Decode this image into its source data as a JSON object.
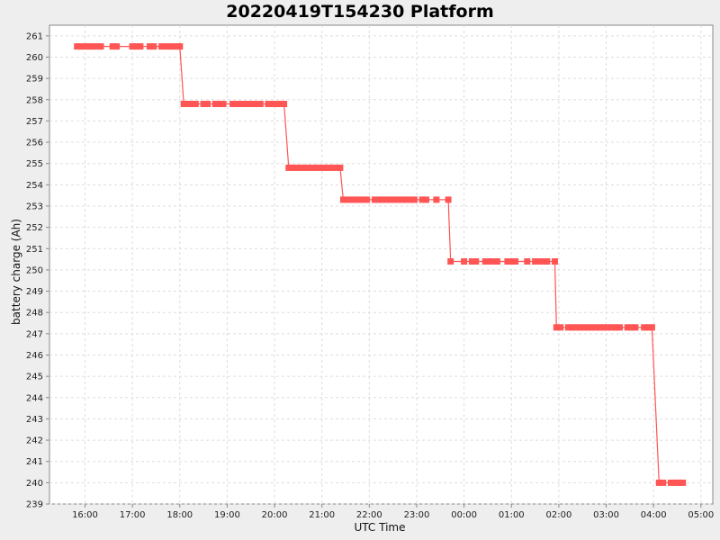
{
  "chart_data": {
    "type": "line",
    "title": "20220419T154230 Platform",
    "xlabel": "UTC Time",
    "ylabel": "battery charge (Ah)",
    "x_tick_labels": [
      "16:00",
      "17:00",
      "18:00",
      "19:00",
      "20:00",
      "21:00",
      "22:00",
      "23:00",
      "00:00",
      "01:00",
      "02:00",
      "03:00",
      "04:00",
      "05:00"
    ],
    "y_tick_labels": [
      "239",
      "240",
      "241",
      "242",
      "243",
      "244",
      "245",
      "246",
      "247",
      "248",
      "249",
      "250",
      "251",
      "252",
      "253",
      "254",
      "255",
      "256",
      "257",
      "258",
      "259",
      "260",
      "261"
    ],
    "xlim": [
      "2022-04-19 15:15",
      "2022-04-20 05:15"
    ],
    "ylim": [
      239,
      261.5
    ],
    "grid": true,
    "legend": "none",
    "series": [
      {
        "color": "#ff5555",
        "line_style": "solid-with-square-markers",
        "points": [
          {
            "x": "2022-04-19 15:50",
            "y": 260.5
          },
          {
            "x": "2022-04-19 15:55",
            "y": 260.5
          },
          {
            "x": "2022-04-19 16:00",
            "y": 260.5
          },
          {
            "x": "2022-04-19 16:05",
            "y": 260.5
          },
          {
            "x": "2022-04-19 16:10",
            "y": 260.5
          },
          {
            "x": "2022-04-19 16:15",
            "y": 260.5
          },
          {
            "x": "2022-04-19 16:20",
            "y": 260.5
          },
          {
            "x": "2022-04-19 16:35",
            "y": 260.5
          },
          {
            "x": "2022-04-19 16:40",
            "y": 260.5
          },
          {
            "x": "2022-04-19 17:00",
            "y": 260.5
          },
          {
            "x": "2022-04-19 17:05",
            "y": 260.5
          },
          {
            "x": "2022-04-19 17:10",
            "y": 260.5
          },
          {
            "x": "2022-04-19 17:22",
            "y": 260.5
          },
          {
            "x": "2022-04-19 17:27",
            "y": 260.5
          },
          {
            "x": "2022-04-19 17:37",
            "y": 260.5
          },
          {
            "x": "2022-04-19 17:42",
            "y": 260.5
          },
          {
            "x": "2022-04-19 17:47",
            "y": 260.5
          },
          {
            "x": "2022-04-19 17:52",
            "y": 260.5
          },
          {
            "x": "2022-04-19 17:57",
            "y": 260.5
          },
          {
            "x": "2022-04-19 18:00",
            "y": 260.5
          },
          {
            "x": "2022-04-19 18:05",
            "y": 257.8
          },
          {
            "x": "2022-04-19 18:10",
            "y": 257.8
          },
          {
            "x": "2022-04-19 18:15",
            "y": 257.8
          },
          {
            "x": "2022-04-19 18:20",
            "y": 257.8
          },
          {
            "x": "2022-04-19 18:30",
            "y": 257.8
          },
          {
            "x": "2022-04-19 18:35",
            "y": 257.8
          },
          {
            "x": "2022-04-19 18:45",
            "y": 257.8
          },
          {
            "x": "2022-04-19 18:50",
            "y": 257.8
          },
          {
            "x": "2022-04-19 18:55",
            "y": 257.8
          },
          {
            "x": "2022-04-19 19:07",
            "y": 257.8
          },
          {
            "x": "2022-04-19 19:12",
            "y": 257.8
          },
          {
            "x": "2022-04-19 19:17",
            "y": 257.8
          },
          {
            "x": "2022-04-19 19:22",
            "y": 257.8
          },
          {
            "x": "2022-04-19 19:27",
            "y": 257.8
          },
          {
            "x": "2022-04-19 19:32",
            "y": 257.8
          },
          {
            "x": "2022-04-19 19:37",
            "y": 257.8
          },
          {
            "x": "2022-04-19 19:42",
            "y": 257.8
          },
          {
            "x": "2022-04-19 19:52",
            "y": 257.8
          },
          {
            "x": "2022-04-19 19:57",
            "y": 257.8
          },
          {
            "x": "2022-04-19 20:02",
            "y": 257.8
          },
          {
            "x": "2022-04-19 20:07",
            "y": 257.8
          },
          {
            "x": "2022-04-19 20:12",
            "y": 257.8
          },
          {
            "x": "2022-04-19 20:18",
            "y": 254.8
          },
          {
            "x": "2022-04-19 20:23",
            "y": 254.8
          },
          {
            "x": "2022-04-19 20:28",
            "y": 254.8
          },
          {
            "x": "2022-04-19 20:33",
            "y": 254.8
          },
          {
            "x": "2022-04-19 20:38",
            "y": 254.8
          },
          {
            "x": "2022-04-19 20:43",
            "y": 254.8
          },
          {
            "x": "2022-04-19 20:48",
            "y": 254.8
          },
          {
            "x": "2022-04-19 20:53",
            "y": 254.8
          },
          {
            "x": "2022-04-19 20:58",
            "y": 254.8
          },
          {
            "x": "2022-04-19 21:03",
            "y": 254.8
          },
          {
            "x": "2022-04-19 21:08",
            "y": 254.8
          },
          {
            "x": "2022-04-19 21:13",
            "y": 254.8
          },
          {
            "x": "2022-04-19 21:18",
            "y": 254.8
          },
          {
            "x": "2022-04-19 21:23",
            "y": 254.8
          },
          {
            "x": "2022-04-19 21:27",
            "y": 253.3
          },
          {
            "x": "2022-04-19 21:32",
            "y": 253.3
          },
          {
            "x": "2022-04-19 21:37",
            "y": 253.3
          },
          {
            "x": "2022-04-19 21:42",
            "y": 253.3
          },
          {
            "x": "2022-04-19 21:47",
            "y": 253.3
          },
          {
            "x": "2022-04-19 21:52",
            "y": 253.3
          },
          {
            "x": "2022-04-19 21:57",
            "y": 253.3
          },
          {
            "x": "2022-04-19 22:07",
            "y": 253.3
          },
          {
            "x": "2022-04-19 22:12",
            "y": 253.3
          },
          {
            "x": "2022-04-19 22:17",
            "y": 253.3
          },
          {
            "x": "2022-04-19 22:22",
            "y": 253.3
          },
          {
            "x": "2022-04-19 22:27",
            "y": 253.3
          },
          {
            "x": "2022-04-19 22:32",
            "y": 253.3
          },
          {
            "x": "2022-04-19 22:37",
            "y": 253.3
          },
          {
            "x": "2022-04-19 22:42",
            "y": 253.3
          },
          {
            "x": "2022-04-19 22:47",
            "y": 253.3
          },
          {
            "x": "2022-04-19 22:52",
            "y": 253.3
          },
          {
            "x": "2022-04-19 22:57",
            "y": 253.3
          },
          {
            "x": "2022-04-19 23:07",
            "y": 253.3
          },
          {
            "x": "2022-04-19 23:12",
            "y": 253.3
          },
          {
            "x": "2022-04-19 23:25",
            "y": 253.3
          },
          {
            "x": "2022-04-19 23:40",
            "y": 253.3
          },
          {
            "x": "2022-04-19 23:43",
            "y": 250.4
          },
          {
            "x": "2022-04-20 00:00",
            "y": 250.4
          },
          {
            "x": "2022-04-20 00:10",
            "y": 250.4
          },
          {
            "x": "2022-04-20 00:15",
            "y": 250.4
          },
          {
            "x": "2022-04-20 00:27",
            "y": 250.4
          },
          {
            "x": "2022-04-20 00:32",
            "y": 250.4
          },
          {
            "x": "2022-04-20 00:37",
            "y": 250.4
          },
          {
            "x": "2022-04-20 00:42",
            "y": 250.4
          },
          {
            "x": "2022-04-20 00:55",
            "y": 250.4
          },
          {
            "x": "2022-04-20 01:00",
            "y": 250.4
          },
          {
            "x": "2022-04-20 01:05",
            "y": 250.4
          },
          {
            "x": "2022-04-20 01:20",
            "y": 250.4
          },
          {
            "x": "2022-04-20 01:30",
            "y": 250.4
          },
          {
            "x": "2022-04-20 01:35",
            "y": 250.4
          },
          {
            "x": "2022-04-20 01:40",
            "y": 250.4
          },
          {
            "x": "2022-04-20 01:45",
            "y": 250.4
          },
          {
            "x": "2022-04-20 01:55",
            "y": 250.4
          },
          {
            "x": "2022-04-20 01:57",
            "y": 247.3
          },
          {
            "x": "2022-04-20 02:02",
            "y": 247.3
          },
          {
            "x": "2022-04-20 02:12",
            "y": 247.3
          },
          {
            "x": "2022-04-20 02:17",
            "y": 247.3
          },
          {
            "x": "2022-04-20 02:22",
            "y": 247.3
          },
          {
            "x": "2022-04-20 02:27",
            "y": 247.3
          },
          {
            "x": "2022-04-20 02:32",
            "y": 247.3
          },
          {
            "x": "2022-04-20 02:37",
            "y": 247.3
          },
          {
            "x": "2022-04-20 02:42",
            "y": 247.3
          },
          {
            "x": "2022-04-20 02:47",
            "y": 247.3
          },
          {
            "x": "2022-04-20 02:52",
            "y": 247.3
          },
          {
            "x": "2022-04-20 02:57",
            "y": 247.3
          },
          {
            "x": "2022-04-20 03:02",
            "y": 247.3
          },
          {
            "x": "2022-04-20 03:07",
            "y": 247.3
          },
          {
            "x": "2022-04-20 03:12",
            "y": 247.3
          },
          {
            "x": "2022-04-20 03:17",
            "y": 247.3
          },
          {
            "x": "2022-04-20 03:27",
            "y": 247.3
          },
          {
            "x": "2022-04-20 03:32",
            "y": 247.3
          },
          {
            "x": "2022-04-20 03:37",
            "y": 247.3
          },
          {
            "x": "2022-04-20 03:48",
            "y": 247.3
          },
          {
            "x": "2022-04-20 03:53",
            "y": 247.3
          },
          {
            "x": "2022-04-20 03:58",
            "y": 247.3
          },
          {
            "x": "2022-04-20 04:07",
            "y": 240.0
          },
          {
            "x": "2022-04-20 04:12",
            "y": 240.0
          },
          {
            "x": "2022-04-20 04:22",
            "y": 240.0
          },
          {
            "x": "2022-04-20 04:27",
            "y": 240.0
          },
          {
            "x": "2022-04-20 04:32",
            "y": 240.0
          },
          {
            "x": "2022-04-20 04:37",
            "y": 240.0
          }
        ]
      }
    ]
  }
}
